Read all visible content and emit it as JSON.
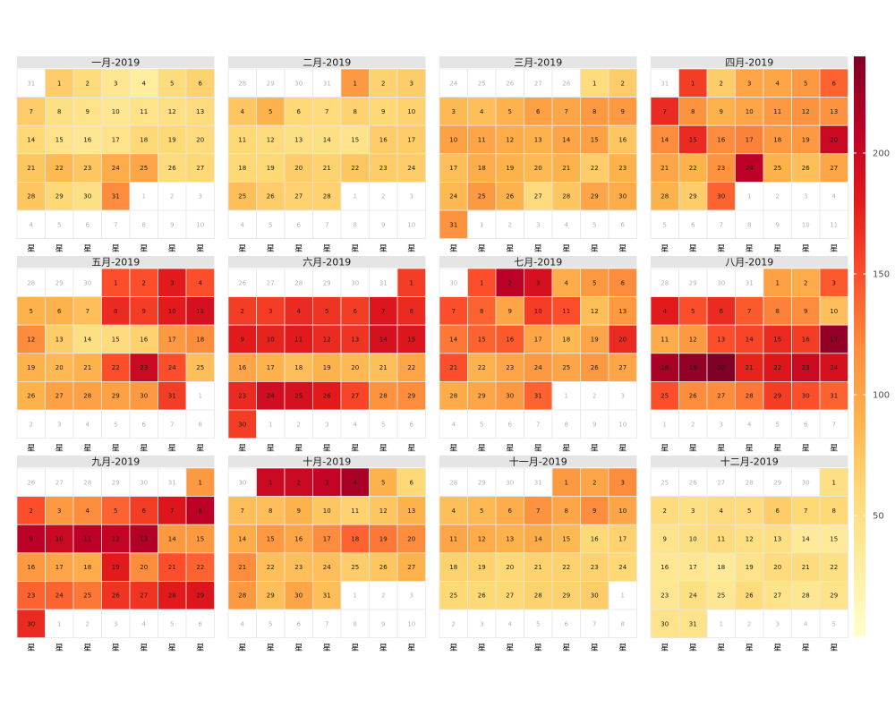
{
  "chart_data": {
    "type": "heatmap",
    "title": "",
    "year": 2019,
    "weekday_label_glyph": "星",
    "weekday_labels": [
      "星",
      "星",
      "星",
      "星",
      "星",
      "星",
      "星"
    ],
    "colorbar": {
      "min": 0,
      "max": 240,
      "ticks": [
        50,
        100,
        150,
        200
      ],
      "labels": [
        "50",
        "100",
        "150",
        "200"
      ],
      "colors": [
        "#ffffcc",
        "#ffeda0",
        "#fed976",
        "#feb24c",
        "#fd8d3c",
        "#fc4e2a",
        "#e31a1c",
        "#bd0026",
        "#800026"
      ]
    },
    "months": [
      {
        "title": "一月-2019",
        "days": 31,
        "start_offset": 1,
        "values": [
          70,
          55,
          40,
          30,
          55,
          65,
          70,
          50,
          45,
          40,
          45,
          50,
          55,
          60,
          45,
          40,
          45,
          60,
          60,
          55,
          75,
          85,
          75,
          95,
          100,
          55,
          60,
          75,
          60,
          50,
          120
        ]
      },
      {
        "title": "二月-2019",
        "days": 28,
        "start_offset": 4,
        "values": [
          110,
          65,
          70,
          75,
          90,
          60,
          55,
          65,
          60,
          65,
          60,
          55,
          50,
          50,
          45,
          70,
          70,
          60,
          60,
          70,
          65,
          75,
          70,
          70,
          80,
          70,
          65,
          65
        ]
      },
      {
        "title": "三月-2019",
        "days": 31,
        "start_offset": 5,
        "values": [
          55,
          70,
          85,
          80,
          90,
          105,
          100,
          110,
          110,
          105,
          100,
          95,
          90,
          100,
          105,
          75,
          80,
          95,
          90,
          85,
          90,
          70,
          90,
          85,
          110,
          90,
          55,
          75,
          100,
          95,
          115
        ]
      },
      {
        "title": "四月-2019",
        "days": 30,
        "start_offset": 1,
        "values": [
          160,
          70,
          100,
          100,
          110,
          140,
          170,
          115,
          90,
          100,
          110,
          115,
          115,
          120,
          170,
          120,
          125,
          110,
          110,
          200,
          100,
          90,
          115,
          210,
          90,
          80,
          100,
          90,
          70,
          140
        ]
      },
      {
        "title": "五月-2019",
        "days": 31,
        "start_offset": 3,
        "values": [
          150,
          150,
          180,
          150,
          90,
          90,
          80,
          170,
          160,
          180,
          190,
          120,
          70,
          50,
          55,
          65,
          110,
          120,
          90,
          85,
          90,
          150,
          200,
          150,
          80,
          90,
          105,
          105,
          105,
          110,
          160
        ]
      },
      {
        "title": "六月-2019",
        "days": 30,
        "start_offset": 6,
        "values": [
          160,
          160,
          160,
          170,
          165,
          160,
          185,
          170,
          180,
          175,
          180,
          170,
          165,
          190,
          185,
          100,
          90,
          80,
          90,
          85,
          80,
          100,
          170,
          195,
          190,
          180,
          155,
          115,
          120,
          160
        ]
      },
      {
        "title": "七月-2019",
        "days": 31,
        "start_offset": 1,
        "values": [
          150,
          210,
          190,
          95,
          110,
          120,
          150,
          140,
          100,
          160,
          150,
          80,
          110,
          130,
          140,
          145,
          100,
          85,
          100,
          170,
          150,
          90,
          100,
          110,
          100,
          110,
          100,
          95,
          100,
          110,
          140
        ]
      },
      {
        "title": "八月-2019",
        "days": 31,
        "start_offset": 4,
        "values": [
          105,
          95,
          145,
          180,
          150,
          170,
          145,
          125,
          120,
          80,
          95,
          110,
          150,
          155,
          170,
          160,
          230,
          220,
          230,
          240,
          175,
          185,
          200,
          190,
          150,
          120,
          120,
          130,
          160,
          150,
          140
        ]
      },
      {
        "title": "九月-2019",
        "days": 30,
        "start_offset": 6,
        "values": [
          110,
          150,
          110,
          120,
          140,
          160,
          185,
          210,
          210,
          200,
          210,
          205,
          215,
          110,
          110,
          110,
          100,
          95,
          180,
          120,
          150,
          140,
          140,
          140,
          130,
          165,
          165,
          180,
          185,
          170
        ]
      },
      {
        "title": "十月-2019",
        "days": 31,
        "start_offset": 1,
        "values": [
          200,
          200,
          205,
          220,
          90,
          60,
          80,
          80,
          90,
          75,
          65,
          75,
          90,
          95,
          110,
          100,
          120,
          140,
          130,
          120,
          120,
          80,
          80,
          80,
          70,
          75,
          90,
          110,
          80,
          100,
          80
        ]
      },
      {
        "title": "十一月-2019",
        "days": 30,
        "start_offset": 4,
        "values": [
          110,
          100,
          120,
          80,
          85,
          95,
          115,
          100,
          120,
          100,
          100,
          95,
          90,
          95,
          85,
          60,
          65,
          65,
          65,
          60,
          65,
          65,
          65,
          60,
          60,
          60,
          60,
          65,
          65,
          70
        ]
      },
      {
        "title": "十二月-2019",
        "days": 31,
        "start_offset": 6,
        "values": [
          50,
          55,
          50,
          55,
          55,
          70,
          60,
          60,
          45,
          50,
          55,
          50,
          50,
          35,
          35,
          40,
          40,
          35,
          45,
          55,
          55,
          50,
          40,
          50,
          40,
          55,
          45,
          40,
          45,
          45,
          45
        ]
      }
    ]
  }
}
